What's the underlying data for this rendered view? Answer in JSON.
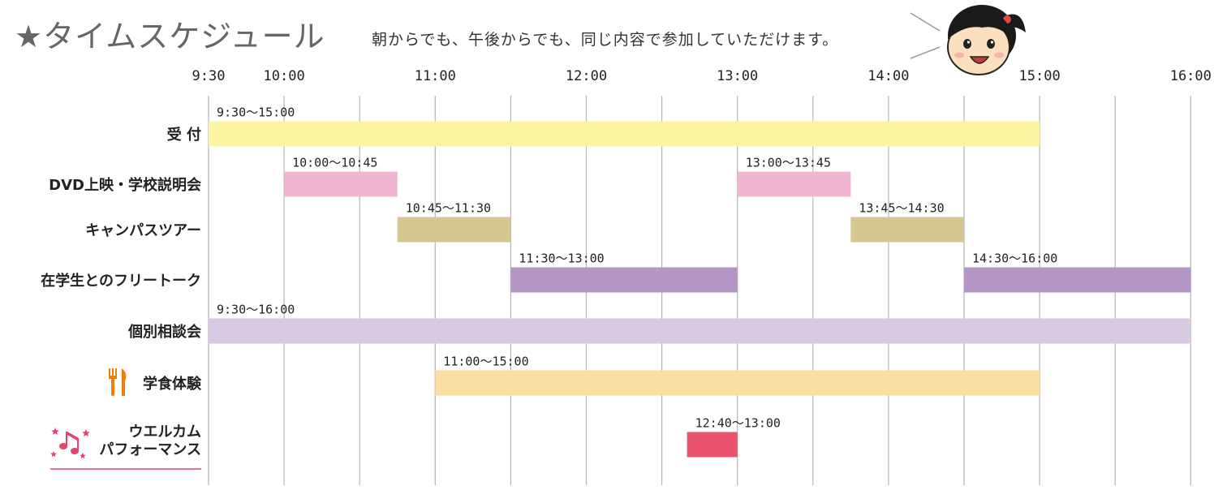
{
  "header": {
    "title": "★タイムスケジュール",
    "subtitle": "朝からでも、午後からでも、同じ内容で参加していただけます。"
  },
  "chart_data": {
    "type": "gantt",
    "x_ticks": [
      "9:30",
      "10:00",
      "11:00",
      "12:00",
      "13:00",
      "14:00",
      "15:00",
      "16:00"
    ],
    "x_range": [
      "9:30",
      "16:00"
    ],
    "gridlines": "every 30 minutes",
    "rows": [
      {
        "label": "受 付",
        "color": "#fbf4a0",
        "bars": [
          {
            "start": "9:30",
            "end": "15:00",
            "label": "9:30〜15:00"
          }
        ]
      },
      {
        "label": "DVD上映・学校説明会",
        "color": "#f2b6d2",
        "bars": [
          {
            "start": "10:00",
            "end": "10:45",
            "label": "10:00〜10:45"
          },
          {
            "start": "13:00",
            "end": "13:45",
            "label": "13:00〜13:45"
          }
        ]
      },
      {
        "label": "キャンパスツアー",
        "color": "#d6c692",
        "bars": [
          {
            "start": "10:45",
            "end": "11:30",
            "label": "10:45〜11:30"
          },
          {
            "start": "13:45",
            "end": "14:30",
            "label": "13:45〜14:30"
          }
        ]
      },
      {
        "label": "在学生とのフリートーク",
        "color": "#b497c6",
        "bars": [
          {
            "start": "11:30",
            "end": "13:00",
            "label": "11:30〜13:00"
          },
          {
            "start": "14:30",
            "end": "16:00",
            "label": "14:30〜16:00"
          }
        ]
      },
      {
        "label": "個別相談会",
        "color": "#d7cbe4",
        "bars": [
          {
            "start": "9:30",
            "end": "16:00",
            "label": "9:30〜16:00"
          }
        ]
      },
      {
        "label": "学食体験",
        "color": "#fbdea4",
        "label_color": "#f07f12",
        "icon": "fork-knife-icon",
        "bars": [
          {
            "start": "11:00",
            "end": "15:00",
            "label": "11:00〜15:00"
          }
        ]
      },
      {
        "label": "ウエルカム パフォーマンス",
        "label_lines": [
          "ウエルカム",
          "パフォーマンス"
        ],
        "color": "#e9536b",
        "label_color": "#e5456a",
        "icon": "music-notes-stars-icon",
        "bars": [
          {
            "start": "12:40",
            "end": "13:00",
            "label": "12:40〜13:00"
          }
        ]
      }
    ]
  }
}
